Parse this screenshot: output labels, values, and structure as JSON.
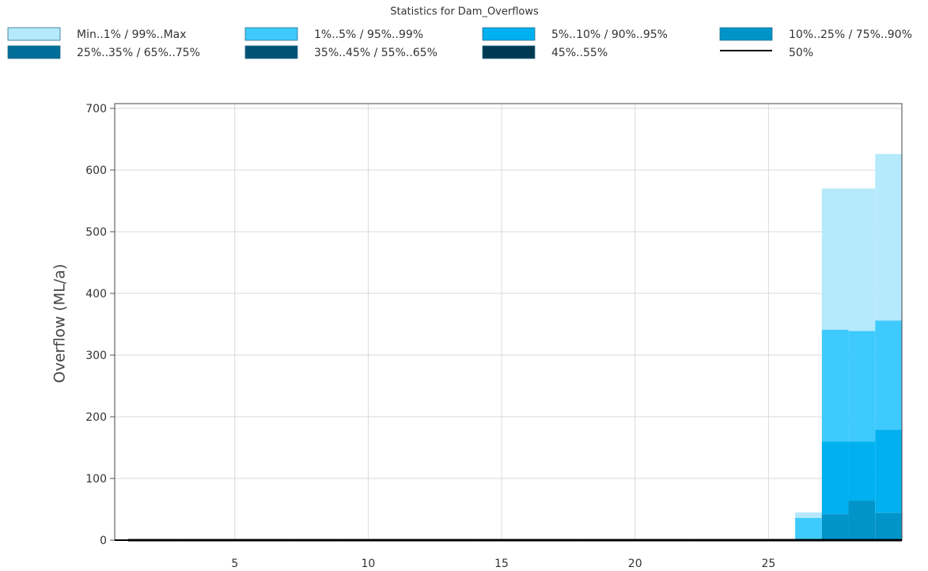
{
  "chart_data": {
    "type": "percentile-band",
    "title": "Statistics for Dam_Overflows",
    "y_label": "Overflow (ML/a)",
    "x": [
      1,
      2,
      3,
      4,
      5,
      6,
      7,
      8,
      9,
      10,
      11,
      12,
      13,
      14,
      15,
      16,
      17,
      18,
      19,
      20,
      21,
      22,
      23,
      24,
      25,
      26,
      27,
      28,
      29
    ],
    "xlim": [
      0.5,
      30
    ],
    "xticks": [
      5,
      10,
      15,
      20,
      25
    ],
    "ylim": [
      0,
      700
    ],
    "yticks": [
      0,
      100,
      200,
      300,
      400,
      500,
      600,
      700
    ],
    "grid": true,
    "series": [
      {
        "name": "Min..1% / 99%..Max",
        "color": "#b5e9fb",
        "values": [
          0,
          0,
          0,
          0,
          0,
          0,
          0,
          0,
          0,
          0,
          0,
          0,
          0,
          0,
          0,
          0,
          0,
          0,
          0,
          0,
          0,
          0,
          0,
          0,
          0,
          45,
          570,
          570,
          626
        ]
      },
      {
        "name": "1%..5% / 95%..99%",
        "color": "#3fcafd",
        "values": [
          0,
          0,
          0,
          0,
          0,
          0,
          0,
          0,
          0,
          0,
          0,
          0,
          0,
          0,
          0,
          0,
          0,
          0,
          0,
          0,
          0,
          0,
          0,
          0,
          0,
          36,
          341,
          339,
          356
        ]
      },
      {
        "name": "5%..10% / 90%..95%",
        "color": "#00b0f0",
        "values": [
          0,
          0,
          0,
          0,
          0,
          0,
          0,
          0,
          0,
          0,
          0,
          0,
          0,
          0,
          0,
          0,
          0,
          0,
          0,
          0,
          0,
          0,
          0,
          0,
          0,
          0,
          160,
          160,
          179
        ]
      },
      {
        "name": "10%..25% / 75%..90%",
        "color": "#0094c9",
        "values": [
          0,
          0,
          0,
          0,
          0,
          0,
          0,
          0,
          0,
          0,
          0,
          0,
          0,
          0,
          0,
          0,
          0,
          0,
          0,
          0,
          0,
          0,
          0,
          0,
          0,
          0,
          42,
          64,
          44
        ]
      },
      {
        "name": "25%..35% / 65%..75%",
        "color": "#006e98",
        "values": [
          0,
          0,
          0,
          0,
          0,
          0,
          0,
          0,
          0,
          0,
          0,
          0,
          0,
          0,
          0,
          0,
          0,
          0,
          0,
          0,
          0,
          0,
          0,
          0,
          0,
          0,
          0,
          0,
          0
        ]
      },
      {
        "name": "35%..45% / 55%..65%",
        "color": "#005275",
        "values": [
          0,
          0,
          0,
          0,
          0,
          0,
          0,
          0,
          0,
          0,
          0,
          0,
          0,
          0,
          0,
          0,
          0,
          0,
          0,
          0,
          0,
          0,
          0,
          0,
          0,
          0,
          0,
          0,
          0
        ]
      },
      {
        "name": "45%..55%",
        "color": "#003a52",
        "values": [
          0,
          0,
          0,
          0,
          0,
          0,
          0,
          0,
          0,
          0,
          0,
          0,
          0,
          0,
          0,
          0,
          0,
          0,
          0,
          0,
          0,
          0,
          0,
          0,
          0,
          0,
          0,
          0,
          0
        ]
      },
      {
        "name": "50%",
        "color": "#000000",
        "values": [
          0,
          0,
          0,
          0,
          0,
          0,
          0,
          0,
          0,
          0,
          0,
          0,
          0,
          0,
          0,
          0,
          0,
          0,
          0,
          0,
          0,
          0,
          0,
          0,
          0,
          0,
          0,
          0,
          0
        ]
      }
    ]
  }
}
